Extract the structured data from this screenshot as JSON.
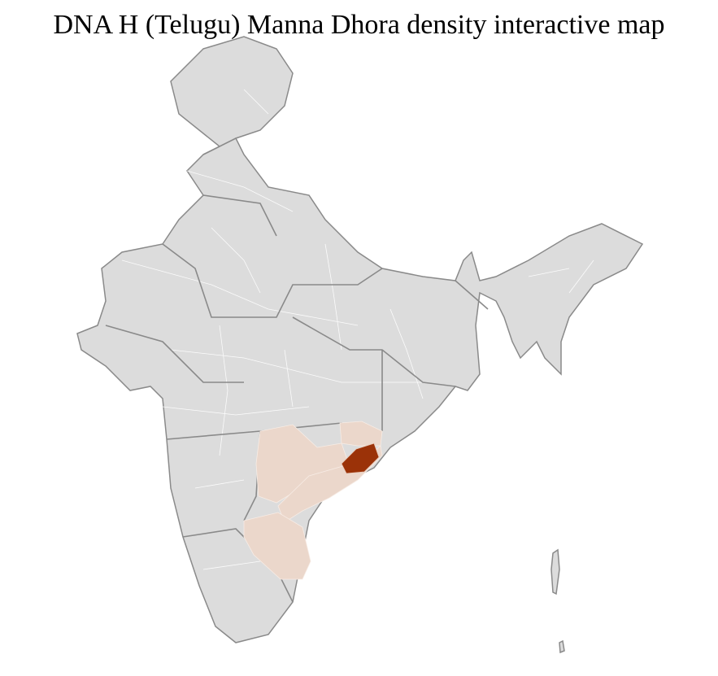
{
  "title": "DNA H (Telugu) Manna Dhora density interactive map",
  "colors": {
    "no_data": "#dcdcdc",
    "low_density": "#ebd7cb",
    "high_density": "#9b3208",
    "state_border": "#8a8a8a",
    "district_border": "#ffffff"
  },
  "regions": [
    {
      "name": "telangana",
      "level": "low_density"
    },
    {
      "name": "coastal-andhra",
      "level": "low_density"
    },
    {
      "name": "rayalaseema",
      "level": "low_density"
    },
    {
      "name": "south-odisha",
      "level": "low_density"
    },
    {
      "name": "visakhapatnam-vizianagaram",
      "level": "high_density"
    }
  ]
}
